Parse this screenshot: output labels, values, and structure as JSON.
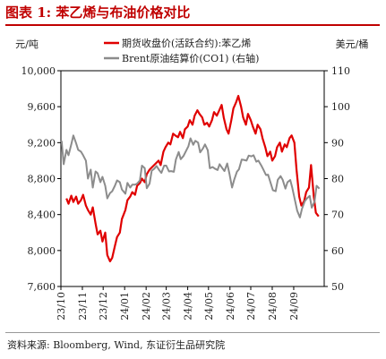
{
  "figure": {
    "title": "图表 1: 苯乙烯与布油价格对比",
    "source": "资料来源: Bloomberg, Wind, 东证衍生品研究院"
  },
  "chart_data": {
    "type": "line",
    "left_axis_label": "元/吨",
    "right_axis_label": "美元/桶",
    "left_ticks": [
      "10,000",
      "9,600",
      "9,200",
      "8,800",
      "8,400",
      "8,000",
      "7,600"
    ],
    "right_ticks": [
      "110",
      "100",
      "90",
      "80",
      "70",
      "60",
      "50"
    ],
    "ylim_left": [
      7600,
      10000
    ],
    "ylim_right": [
      50,
      110
    ],
    "x_ticks": [
      "23/10",
      "23/11",
      "23/12",
      "24/01",
      "24/02",
      "24/03",
      "24/04",
      "24/05",
      "24/06",
      "24/07",
      "24/08",
      "24/09"
    ],
    "xlim": [
      "2023-10-01",
      "2024-10-15"
    ],
    "legend_position": "top-center",
    "grid": false,
    "series": [
      {
        "name": "期货收盘价(活跃合约):苯乙烯",
        "axis": "left",
        "color": "#e00000",
        "points": [
          [
            "2023-10-09",
            8580
          ],
          [
            "2023-10-12",
            8520
          ],
          [
            "2023-10-16",
            8610
          ],
          [
            "2023-10-19",
            8540
          ],
          [
            "2023-10-23",
            8600
          ],
          [
            "2023-10-26",
            8520
          ],
          [
            "2023-10-30",
            8560
          ],
          [
            "2023-11-02",
            8620
          ],
          [
            "2023-11-06",
            8500
          ],
          [
            "2023-11-09",
            8450
          ],
          [
            "2023-11-13",
            8400
          ],
          [
            "2023-11-16",
            8480
          ],
          [
            "2023-11-20",
            8300
          ],
          [
            "2023-11-23",
            8180
          ],
          [
            "2023-11-27",
            8220
          ],
          [
            "2023-11-30",
            8100
          ],
          [
            "2023-12-04",
            8200
          ],
          [
            "2023-12-07",
            7950
          ],
          [
            "2023-12-11",
            7880
          ],
          [
            "2023-12-14",
            7920
          ],
          [
            "2023-12-18",
            8050
          ],
          [
            "2023-12-21",
            8150
          ],
          [
            "2023-12-25",
            8200
          ],
          [
            "2023-12-28",
            8350
          ],
          [
            "2024-01-02",
            8450
          ],
          [
            "2024-01-05",
            8560
          ],
          [
            "2024-01-09",
            8600
          ],
          [
            "2024-01-12",
            8650
          ],
          [
            "2024-01-16",
            8620
          ],
          [
            "2024-01-19",
            8720
          ],
          [
            "2024-01-23",
            8750
          ],
          [
            "2024-01-26",
            8800
          ],
          [
            "2024-01-30",
            8760
          ],
          [
            "2024-02-02",
            8850
          ],
          [
            "2024-02-06",
            8900
          ],
          [
            "2024-02-19",
            9000
          ],
          [
            "2024-02-22",
            8950
          ],
          [
            "2024-02-26",
            9100
          ],
          [
            "2024-02-29",
            9150
          ],
          [
            "2024-03-04",
            9200
          ],
          [
            "2024-03-07",
            9180
          ],
          [
            "2024-03-11",
            9300
          ],
          [
            "2024-03-14",
            9280
          ],
          [
            "2024-03-18",
            9260
          ],
          [
            "2024-03-21",
            9320
          ],
          [
            "2024-03-25",
            9250
          ],
          [
            "2024-03-28",
            9350
          ],
          [
            "2024-04-01",
            9380
          ],
          [
            "2024-04-04",
            9450
          ],
          [
            "2024-04-08",
            9400
          ],
          [
            "2024-04-11",
            9500
          ],
          [
            "2024-04-15",
            9560
          ],
          [
            "2024-04-18",
            9520
          ],
          [
            "2024-04-22",
            9480
          ],
          [
            "2024-04-25",
            9400
          ],
          [
            "2024-04-29",
            9420
          ],
          [
            "2024-05-02",
            9380
          ],
          [
            "2024-05-06",
            9450
          ],
          [
            "2024-05-09",
            9540
          ],
          [
            "2024-05-13",
            9500
          ],
          [
            "2024-05-16",
            9550
          ],
          [
            "2024-05-20",
            9620
          ],
          [
            "2024-05-23",
            9480
          ],
          [
            "2024-05-27",
            9350
          ],
          [
            "2024-05-30",
            9300
          ],
          [
            "2024-06-03",
            9450
          ],
          [
            "2024-06-06",
            9580
          ],
          [
            "2024-06-10",
            9650
          ],
          [
            "2024-06-13",
            9720
          ],
          [
            "2024-06-17",
            9600
          ],
          [
            "2024-06-20",
            9480
          ],
          [
            "2024-06-24",
            9400
          ],
          [
            "2024-06-27",
            9520
          ],
          [
            "2024-07-01",
            9450
          ],
          [
            "2024-07-04",
            9380
          ],
          [
            "2024-07-08",
            9300
          ],
          [
            "2024-07-11",
            9400
          ],
          [
            "2024-07-15",
            9350
          ],
          [
            "2024-07-18",
            9250
          ],
          [
            "2024-07-22",
            9150
          ],
          [
            "2024-07-25",
            9050
          ],
          [
            "2024-07-29",
            9100
          ],
          [
            "2024-08-01",
            9000
          ],
          [
            "2024-08-05",
            9050
          ],
          [
            "2024-08-08",
            9150
          ],
          [
            "2024-08-12",
            9200
          ],
          [
            "2024-08-15",
            9100
          ],
          [
            "2024-08-19",
            9180
          ],
          [
            "2024-08-22",
            9150
          ],
          [
            "2024-08-26",
            9250
          ],
          [
            "2024-08-29",
            9280
          ],
          [
            "2024-09-02",
            9200
          ],
          [
            "2024-09-05",
            8900
          ],
          [
            "2024-09-09",
            8600
          ],
          [
            "2024-09-12",
            8500
          ],
          [
            "2024-09-16",
            8550
          ],
          [
            "2024-09-19",
            8650
          ],
          [
            "2024-09-23",
            8700
          ],
          [
            "2024-09-26",
            8950
          ],
          [
            "2024-09-30",
            8600
          ],
          [
            "2024-10-03",
            8420
          ],
          [
            "2024-10-07",
            8380
          ]
        ]
      },
      {
        "name": "Brent原油结算价(CO1) (右轴)",
        "axis": "right",
        "color": "#8c8c8c",
        "points": [
          [
            "2023-10-02",
            90.5
          ],
          [
            "2023-10-05",
            84.0
          ],
          [
            "2023-10-09",
            88.0
          ],
          [
            "2023-10-12",
            86.5
          ],
          [
            "2023-10-16",
            89.5
          ],
          [
            "2023-10-19",
            92.0
          ],
          [
            "2023-10-23",
            89.8
          ],
          [
            "2023-10-26",
            88.0
          ],
          [
            "2023-10-30",
            87.5
          ],
          [
            "2023-11-02",
            86.5
          ],
          [
            "2023-11-06",
            85.0
          ],
          [
            "2023-11-09",
            80.0
          ],
          [
            "2023-11-13",
            82.5
          ],
          [
            "2023-11-16",
            77.5
          ],
          [
            "2023-11-20",
            82.0
          ],
          [
            "2023-11-23",
            81.5
          ],
          [
            "2023-11-27",
            79.0
          ],
          [
            "2023-11-30",
            80.5
          ],
          [
            "2023-12-04",
            78.0
          ],
          [
            "2023-12-07",
            74.5
          ],
          [
            "2023-12-11",
            76.0
          ],
          [
            "2023-12-14",
            76.5
          ],
          [
            "2023-12-18",
            78.0
          ],
          [
            "2023-12-21",
            79.5
          ],
          [
            "2023-12-25",
            79.0
          ],
          [
            "2023-12-28",
            77.0
          ],
          [
            "2024-01-02",
            75.8
          ],
          [
            "2024-01-05",
            78.8
          ],
          [
            "2024-01-09",
            77.5
          ],
          [
            "2024-01-12",
            78.3
          ],
          [
            "2024-01-16",
            78.3
          ],
          [
            "2024-01-19",
            78.6
          ],
          [
            "2024-01-23",
            79.5
          ],
          [
            "2024-01-26",
            83.6
          ],
          [
            "2024-01-30",
            82.9
          ],
          [
            "2024-02-02",
            77.3
          ],
          [
            "2024-02-06",
            78.6
          ],
          [
            "2024-02-09",
            82.2
          ],
          [
            "2024-02-13",
            82.8
          ],
          [
            "2024-02-16",
            83.5
          ],
          [
            "2024-02-20",
            82.3
          ],
          [
            "2024-02-23",
            81.6
          ],
          [
            "2024-02-27",
            83.6
          ],
          [
            "2024-03-01",
            83.6
          ],
          [
            "2024-03-05",
            82.0
          ],
          [
            "2024-03-08",
            82.1
          ],
          [
            "2024-03-12",
            81.9
          ],
          [
            "2024-03-15",
            85.3
          ],
          [
            "2024-03-19",
            87.4
          ],
          [
            "2024-03-22",
            85.4
          ],
          [
            "2024-03-26",
            86.3
          ],
          [
            "2024-03-29",
            87.5
          ],
          [
            "2024-04-02",
            89.0
          ],
          [
            "2024-04-05",
            91.2
          ],
          [
            "2024-04-09",
            89.4
          ],
          [
            "2024-04-12",
            90.5
          ],
          [
            "2024-04-16",
            90.0
          ],
          [
            "2024-04-19",
            87.3
          ],
          [
            "2024-04-23",
            88.4
          ],
          [
            "2024-04-26",
            89.5
          ],
          [
            "2024-04-30",
            87.9
          ],
          [
            "2024-05-03",
            82.9
          ],
          [
            "2024-05-07",
            83.2
          ],
          [
            "2024-05-10",
            82.8
          ],
          [
            "2024-05-14",
            82.4
          ],
          [
            "2024-05-17",
            84.0
          ],
          [
            "2024-05-21",
            82.9
          ],
          [
            "2024-05-24",
            82.1
          ],
          [
            "2024-05-28",
            84.2
          ],
          [
            "2024-05-31",
            81.6
          ],
          [
            "2024-06-04",
            77.5
          ],
          [
            "2024-06-07",
            79.6
          ],
          [
            "2024-06-11",
            81.9
          ],
          [
            "2024-06-14",
            82.6
          ],
          [
            "2024-06-18",
            85.3
          ],
          [
            "2024-06-21",
            85.2
          ],
          [
            "2024-06-25",
            85.0
          ],
          [
            "2024-06-28",
            86.4
          ],
          [
            "2024-07-02",
            86.2
          ],
          [
            "2024-07-05",
            86.5
          ],
          [
            "2024-07-09",
            84.7
          ],
          [
            "2024-07-12",
            85.0
          ],
          [
            "2024-07-16",
            83.7
          ],
          [
            "2024-07-19",
            82.6
          ],
          [
            "2024-07-23",
            81.0
          ],
          [
            "2024-07-26",
            81.1
          ],
          [
            "2024-07-30",
            78.6
          ],
          [
            "2024-08-02",
            76.8
          ],
          [
            "2024-08-06",
            76.5
          ],
          [
            "2024-08-09",
            79.7
          ],
          [
            "2024-08-13",
            80.7
          ],
          [
            "2024-08-16",
            79.7
          ],
          [
            "2024-08-20",
            77.2
          ],
          [
            "2024-08-23",
            79.0
          ],
          [
            "2024-08-27",
            79.6
          ],
          [
            "2024-08-30",
            77.4
          ],
          [
            "2024-09-03",
            73.8
          ],
          [
            "2024-09-06",
            71.1
          ],
          [
            "2024-09-10",
            69.2
          ],
          [
            "2024-09-13",
            71.6
          ],
          [
            "2024-09-17",
            73.7
          ],
          [
            "2024-09-20",
            74.5
          ],
          [
            "2024-09-24",
            75.2
          ],
          [
            "2024-09-27",
            71.9
          ],
          [
            "2024-10-01",
            73.6
          ],
          [
            "2024-10-04",
            78.0
          ],
          [
            "2024-10-08",
            77.2
          ]
        ]
      }
    ]
  }
}
